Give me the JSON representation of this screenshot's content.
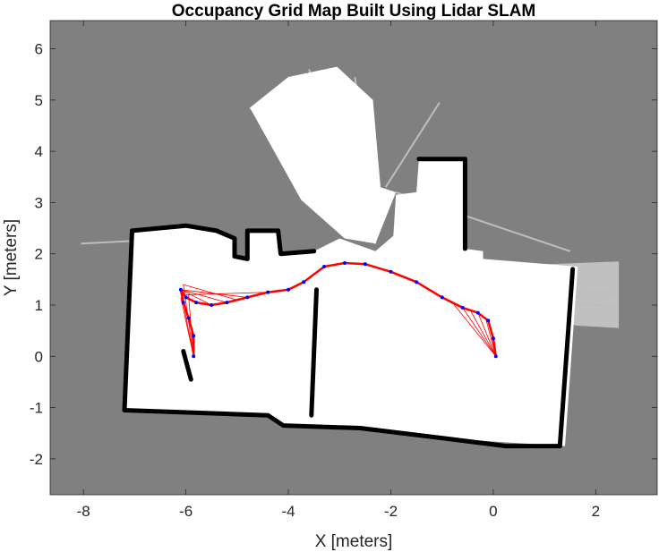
{
  "chart_data": {
    "type": "occupancy-grid",
    "title": "Occupancy Grid Map Built Using Lidar SLAM",
    "xlabel": "X [meters]",
    "ylabel": "Y [meters]",
    "xlim": [
      -8.65,
      3.2
    ],
    "ylim": [
      -2.7,
      6.55
    ],
    "xticks": [
      -8,
      -6,
      -4,
      -2,
      0,
      2
    ],
    "yticks": [
      -2,
      -1,
      0,
      1,
      2,
      3,
      4,
      5,
      6
    ],
    "xtick_labels": [
      "-8",
      "-6",
      "-4",
      "-2",
      "0",
      "2"
    ],
    "ytick_labels": [
      "-2",
      "-1",
      "0",
      "1",
      "2",
      "3",
      "4",
      "5",
      "6"
    ],
    "grid": false,
    "colors": {
      "unknown": "#808080",
      "free": "#ffffff",
      "occupied": "#000000",
      "trajectory": "#ff0000",
      "poses": "#0000ff"
    },
    "map": {
      "free_regions": [
        [
          [
            -7.2,
            -1.05
          ],
          [
            -7.05,
            2.45
          ],
          [
            -6.0,
            2.55
          ],
          [
            -5.4,
            2.45
          ],
          [
            -5.05,
            2.3
          ],
          [
            -5.05,
            1.95
          ],
          [
            -4.8,
            1.9
          ],
          [
            -4.8,
            2.45
          ],
          [
            -4.2,
            2.45
          ],
          [
            -4.15,
            2.0
          ],
          [
            -3.5,
            2.05
          ],
          [
            -3.0,
            2.3
          ],
          [
            -2.3,
            2.05
          ],
          [
            -1.95,
            2.35
          ],
          [
            -1.9,
            3.15
          ],
          [
            -1.5,
            3.2
          ],
          [
            -1.45,
            3.85
          ],
          [
            -0.55,
            3.85
          ],
          [
            -0.55,
            2.1
          ],
          [
            -0.2,
            2.05
          ],
          [
            -0.2,
            1.9
          ],
          [
            1.65,
            1.75
          ],
          [
            1.4,
            -1.75
          ],
          [
            -0.95,
            -1.6
          ],
          [
            -2.6,
            -1.4
          ],
          [
            -4.1,
            -1.35
          ],
          [
            -4.4,
            -1.15
          ]
        ],
        [
          [
            -3.75,
            3.05
          ],
          [
            -4.75,
            4.85
          ],
          [
            -4.0,
            5.45
          ],
          [
            -3.05,
            5.65
          ],
          [
            -2.35,
            5.0
          ],
          [
            -2.2,
            3.3
          ],
          [
            -1.9,
            3.2
          ],
          [
            -2.3,
            2.2
          ],
          [
            -2.9,
            2.3
          ]
        ]
      ],
      "light_regions": [
        [
          [
            -4.75,
            4.85
          ],
          [
            -4.4,
            5.0
          ],
          [
            -4.1,
            4.3
          ],
          [
            -3.7,
            3.4
          ]
        ],
        [
          [
            -0.2,
            1.75
          ],
          [
            2.45,
            1.85
          ],
          [
            2.45,
            0.55
          ],
          [
            1.6,
            0.6
          ]
        ]
      ],
      "walls": [
        [
          [
            -7.05,
            2.45
          ],
          [
            -7.2,
            -1.05
          ],
          [
            -4.4,
            -1.15
          ],
          [
            -4.1,
            -1.35
          ],
          [
            -2.6,
            -1.4
          ],
          [
            -0.95,
            -1.6
          ],
          [
            0.25,
            -1.75
          ],
          [
            1.3,
            -1.75
          ]
        ],
        [
          [
            1.3,
            -1.75
          ],
          [
            1.55,
            1.7
          ]
        ],
        [
          [
            -7.05,
            2.45
          ],
          [
            -6.0,
            2.55
          ],
          [
            -5.4,
            2.45
          ],
          [
            -5.05,
            2.3
          ],
          [
            -5.05,
            1.95
          ],
          [
            -4.8,
            1.9
          ],
          [
            -4.8,
            2.45
          ],
          [
            -4.2,
            2.45
          ],
          [
            -4.15,
            2.0
          ],
          [
            -3.5,
            2.05
          ]
        ],
        [
          [
            -1.45,
            3.85
          ],
          [
            -0.55,
            3.85
          ],
          [
            -0.55,
            2.1
          ]
        ],
        [
          [
            -3.45,
            1.3
          ],
          [
            -3.55,
            -1.15
          ]
        ],
        [
          [
            -6.05,
            0.1
          ],
          [
            -5.9,
            -0.45
          ]
        ]
      ],
      "rays": [
        [
          -2.3,
          2.2,
          -4.75,
          4.85
        ],
        [
          -2.3,
          2.2,
          -4.45,
          5.05
        ],
        [
          -2.3,
          2.2,
          -4.2,
          5.25
        ],
        [
          -2.3,
          2.2,
          -3.9,
          5.45
        ],
        [
          -2.3,
          2.2,
          -3.6,
          5.6
        ],
        [
          -2.3,
          2.2,
          -3.2,
          5.55
        ],
        [
          -2.3,
          2.2,
          -2.7,
          5.45
        ],
        [
          -2.1,
          3.3,
          -1.05,
          4.95
        ],
        [
          -1.9,
          3.2,
          1.5,
          2.05
        ],
        [
          -7.05,
          2.25,
          -8.05,
          2.2
        ],
        [
          1.6,
          1.3,
          2.45,
          1.2
        ],
        [
          1.6,
          1.05,
          2.4,
          0.95
        ]
      ]
    },
    "series": [
      {
        "role": "trajectory",
        "x": [
          0.05,
          0.0,
          -0.1,
          -0.3,
          -0.6,
          -1.0,
          -1.5,
          -2.0,
          -2.5,
          -2.9,
          -3.3,
          -3.7,
          -4.0,
          -4.4,
          -4.8,
          -5.2,
          -5.5,
          -5.8,
          -6.0,
          -6.1,
          -6.05,
          -5.95,
          -5.85,
          -5.85
        ],
        "y": [
          0.0,
          0.35,
          0.7,
          0.85,
          0.95,
          1.15,
          1.45,
          1.65,
          1.8,
          1.82,
          1.75,
          1.45,
          1.3,
          1.25,
          1.15,
          1.05,
          1.0,
          1.05,
          1.15,
          1.3,
          1.05,
          0.75,
          0.4,
          0.0
        ]
      }
    ],
    "constraint_rays": [
      {
        "from": [
          0.05,
          0.0
        ],
        "to": [
          -0.3,
          0.85
        ]
      },
      {
        "from": [
          0.05,
          0.0
        ],
        "to": [
          -0.45,
          0.9
        ]
      },
      {
        "from": [
          0.05,
          0.0
        ],
        "to": [
          -0.6,
          0.95
        ]
      },
      {
        "from": [
          0.05,
          0.0
        ],
        "to": [
          -0.8,
          1.05
        ]
      },
      {
        "from": [
          0.05,
          0.0
        ],
        "to": [
          -0.15,
          0.75
        ]
      },
      {
        "from": [
          -5.85,
          0.0
        ],
        "to": [
          -6.1,
          1.3
        ]
      },
      {
        "from": [
          -5.85,
          0.0
        ],
        "to": [
          -6.05,
          1.4
        ]
      },
      {
        "from": [
          -5.85,
          0.0
        ],
        "to": [
          -5.95,
          1.2
        ]
      },
      {
        "from": [
          -5.85,
          0.0
        ],
        "to": [
          -6.1,
          1.15
        ]
      },
      {
        "from": [
          -6.1,
          1.3
        ],
        "to": [
          -5.5,
          1.0
        ]
      },
      {
        "from": [
          -6.1,
          1.3
        ],
        "to": [
          -5.2,
          1.05
        ]
      },
      {
        "from": [
          -6.1,
          1.3
        ],
        "to": [
          -4.8,
          1.15
        ]
      },
      {
        "from": [
          -6.05,
          1.4
        ],
        "to": [
          -5.0,
          1.1
        ]
      },
      {
        "from": [
          -6.0,
          1.2
        ],
        "to": [
          -4.4,
          1.25
        ]
      }
    ]
  }
}
